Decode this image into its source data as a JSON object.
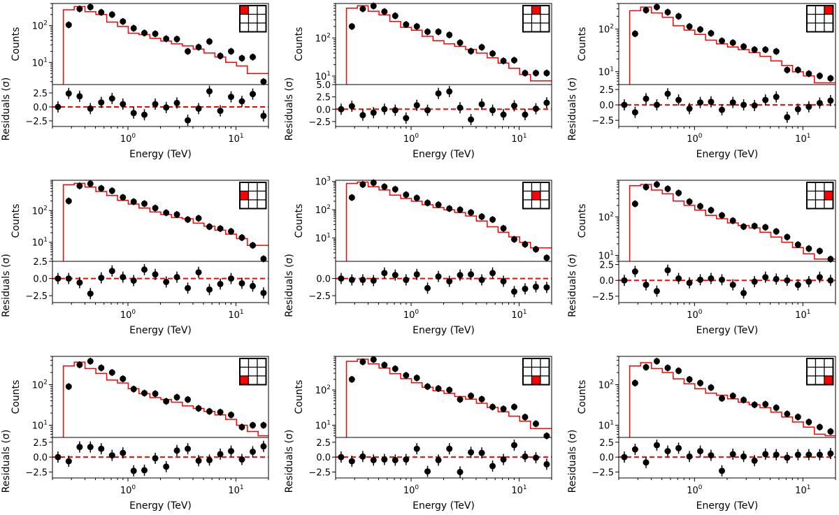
{
  "chart_data": {
    "type": "scatter",
    "layout": "3x3 grid of spectral fit panels, each with counts (log) above and residuals below",
    "x_energies_TeV": [
      0.225,
      0.283,
      0.357,
      0.449,
      0.566,
      0.713,
      0.898,
      1.13,
      1.42,
      1.79,
      2.26,
      2.84,
      3.58,
      4.51,
      5.68,
      7.16,
      9.01,
      11.35,
      14.3,
      18.0
    ],
    "xlabel": "Energy (TeV)",
    "xscale": "log",
    "xlim": [
      0.2,
      20
    ],
    "x_tick_labels": [
      "10^0",
      "10^1"
    ],
    "counts_ylabel": "Counts",
    "residuals_ylabel": "Residuals (σ)",
    "model_color": "#ff0000",
    "data_color": "#000000",
    "panels": [
      {
        "name": "panel-1-1",
        "inset_highlight": [
          0,
          0
        ],
        "counts_ylim": [
          2.5,
          400
        ],
        "counts_ticks": [
          "10^1",
          "10^2"
        ],
        "residual_ylim": [
          -3.5,
          4.0
        ],
        "residual_ticks": [
          "2.5",
          "0.0",
          "−2.5"
        ],
        "counts": [
          null,
          105,
          285,
          320,
          230,
          200,
          130,
          85,
          63,
          60,
          44,
          43,
          20,
          26,
          37,
          15,
          20,
          13,
          14,
          3.0
        ],
        "model": [
          90,
          270,
          330,
          240,
          200,
          125,
          95,
          62,
          57,
          45,
          38,
          32,
          28,
          23,
          18,
          14,
          10,
          8,
          5,
          5
        ],
        "residuals": [
          0.0,
          2.4,
          1.9,
          -0.3,
          0.8,
          1.5,
          0.5,
          -1.1,
          -1.4,
          0.5,
          -0.1,
          0.7,
          -2.4,
          -0.3,
          2.8,
          -0.7,
          1.8,
          1.0,
          2.3,
          -1.6
        ]
      },
      {
        "name": "panel-1-2",
        "inset_highlight": [
          0,
          1
        ],
        "counts_ylim": [
          6,
          800
        ],
        "counts_ticks": [
          "10^1",
          "10^2"
        ],
        "residual_ylim": [
          -3.5,
          5.0
        ],
        "residual_ticks": [
          "5.0",
          "2.5",
          "0.0",
          "−2.5"
        ],
        "counts": [
          null,
          200,
          580,
          690,
          490,
          380,
          225,
          200,
          145,
          145,
          120,
          75,
          45,
          57,
          39,
          25,
          26,
          12,
          12,
          12
        ],
        "model": [
          200,
          600,
          700,
          500,
          400,
          270,
          190,
          160,
          110,
          85,
          70,
          60,
          50,
          40,
          30,
          22,
          16,
          11,
          7.5,
          7.5
        ],
        "residuals": [
          0.0,
          0.6,
          -1.2,
          -0.7,
          0.0,
          -0.2,
          -1.8,
          0.8,
          -0.2,
          3.2,
          3.6,
          0.3,
          -2.1,
          1.0,
          -0.2,
          -1.1,
          0.7,
          -1.1,
          0.1,
          1.3
        ]
      },
      {
        "name": "panel-1-3",
        "inset_highlight": [
          0,
          2
        ],
        "counts_ylim": [
          5,
          400
        ],
        "counts_ticks": [
          "10^1",
          "10^2"
        ],
        "residual_ylim": [
          -3.5,
          3.3
        ],
        "residual_ticks": [
          "2.5",
          "0.0",
          "−2.5"
        ],
        "counts": [
          null,
          78,
          280,
          330,
          250,
          200,
          115,
          98,
          80,
          53,
          48,
          39,
          33,
          33,
          30,
          11,
          11,
          9,
          8,
          7
        ],
        "model": [
          90,
          270,
          330,
          240,
          190,
          120,
          95,
          75,
          55,
          45,
          38,
          33,
          28,
          23,
          18,
          14,
          10,
          8,
          5.5,
          5.5
        ],
        "residuals": [
          0.0,
          -1.2,
          1.0,
          0.0,
          1.8,
          0.8,
          -0.6,
          0.4,
          0.5,
          -0.8,
          0.4,
          0.0,
          -0.1,
          0.8,
          1.3,
          -2.0,
          -0.7,
          -0.3,
          0.3,
          0.7
        ]
      },
      {
        "name": "panel-2-1",
        "inset_highlight": [
          1,
          0
        ],
        "counts_ylim": [
          2.5,
          900
        ],
        "counts_ticks": [
          "10^1",
          "10^2"
        ],
        "residual_ylim": [
          -3.5,
          2.5
        ],
        "residual_ticks": [
          "2.5",
          "0.0",
          "−2.5"
        ],
        "counts": [
          null,
          200,
          600,
          700,
          500,
          420,
          260,
          190,
          165,
          120,
          85,
          75,
          52,
          57,
          31,
          27,
          22,
          14,
          8,
          3
        ],
        "model": [
          200,
          650,
          720,
          550,
          400,
          300,
          210,
          160,
          120,
          90,
          75,
          60,
          55,
          40,
          32,
          24,
          18,
          13,
          8,
          8
        ],
        "residuals": [
          0.0,
          0.0,
          -0.6,
          -2.2,
          0.1,
          1.1,
          0.2,
          -0.3,
          1.3,
          0.6,
          -0.5,
          0.2,
          -1.4,
          0.9,
          -1.6,
          -0.8,
          0.0,
          -0.7,
          -1.1,
          -2.1
        ]
      },
      {
        "name": "panel-2-2",
        "inset_highlight": [
          1,
          1
        ],
        "counts_ylim": [
          1.5,
          1100
        ],
        "counts_ticks": [
          "10^1",
          "10^2",
          "10^3"
        ],
        "residual_ylim": [
          -3.5,
          2.5
        ],
        "residual_ticks": [
          "0.0",
          "−2.5"
        ],
        "counts": [
          null,
          270,
          780,
          900,
          650,
          530,
          340,
          260,
          175,
          150,
          110,
          100,
          80,
          57,
          45,
          22,
          9,
          6,
          4,
          2
        ],
        "model": [
          280,
          850,
          950,
          650,
          500,
          330,
          250,
          200,
          150,
          120,
          100,
          80,
          60,
          40,
          25,
          16,
          11,
          7,
          4.5,
          4.5
        ],
        "residuals": [
          0.0,
          -0.2,
          -0.2,
          -0.3,
          0.8,
          0.5,
          -0.2,
          0.6,
          -1.4,
          0.3,
          -0.4,
          0.5,
          0.6,
          -0.2,
          0.8,
          -0.4,
          -1.9,
          -1.5,
          -1.2,
          -1.3
        ]
      },
      {
        "name": "panel-2-3",
        "inset_highlight": [
          1,
          2
        ],
        "counts_ylim": [
          7,
          900
        ],
        "counts_ticks": [
          "10^1",
          "10^2"
        ],
        "residual_ylim": [
          -3.5,
          3.0
        ],
        "residual_ticks": [
          "2.5",
          "0.0",
          "−2.5"
        ],
        "counts": [
          null,
          220,
          600,
          700,
          540,
          420,
          250,
          190,
          150,
          110,
          80,
          56,
          58,
          54,
          42,
          30,
          19,
          15,
          13,
          8
        ],
        "model": [
          200,
          650,
          700,
          500,
          400,
          260,
          200,
          150,
          110,
          90,
          70,
          60,
          52,
          40,
          30,
          22,
          16,
          11,
          8,
          8
        ],
        "residuals": [
          0.0,
          1.4,
          -0.7,
          -1.7,
          1.6,
          0.3,
          -0.4,
          0.1,
          0.3,
          0.1,
          -0.7,
          -2.0,
          -0.2,
          0.5,
          0.2,
          0.0,
          -0.7,
          -0.2,
          0.5,
          0.0
        ]
      },
      {
        "name": "panel-3-1",
        "inset_highlight": [
          2,
          0
        ],
        "counts_ylim": [
          5,
          500
        ],
        "counts_ticks": [
          "10^1",
          "10^2"
        ],
        "residual_ylim": [
          -3.5,
          3.3
        ],
        "residual_ticks": [
          "2.5",
          "0.0",
          "−2.5"
        ],
        "counts": [
          null,
          90,
          310,
          380,
          260,
          200,
          140,
          78,
          62,
          60,
          39,
          49,
          43,
          26,
          22,
          21,
          18,
          9,
          10,
          10
        ],
        "model": [
          95,
          290,
          360,
          250,
          190,
          130,
          110,
          80,
          60,
          48,
          43,
          37,
          30,
          26,
          22,
          18,
          14,
          10,
          7,
          5.5
        ],
        "residuals": [
          0.0,
          -0.7,
          1.7,
          1.7,
          1.4,
          0.3,
          0.7,
          -2.3,
          -2.2,
          -0.2,
          -1.6,
          1.1,
          1.4,
          -0.6,
          -0.5,
          0.5,
          1.0,
          -0.4,
          0.9,
          1.8
        ]
      },
      {
        "name": "panel-3-2",
        "inset_highlight": [
          2,
          1
        ],
        "counts_ylim": [
          4.5,
          900
        ],
        "counts_ticks": [
          "10^1",
          "10^2"
        ],
        "residual_ylim": [
          -3.5,
          3.3
        ],
        "residual_ticks": [
          "2.5",
          "0.0",
          "−2.5"
        ],
        "counts": [
          null,
          200,
          630,
          730,
          510,
          400,
          260,
          220,
          125,
          110,
          100,
          54,
          68,
          55,
          33,
          29,
          33,
          17,
          11,
          5
        ],
        "model": [
          210,
          650,
          750,
          550,
          420,
          290,
          210,
          160,
          120,
          95,
          80,
          65,
          55,
          42,
          32,
          24,
          18,
          13,
          8,
          8
        ],
        "residuals": [
          0.0,
          -0.7,
          0.1,
          -0.5,
          -0.4,
          -0.5,
          -0.4,
          1.4,
          -2.4,
          -0.5,
          1.4,
          -2.5,
          0.8,
          0.7,
          -1.5,
          -0.4,
          2.0,
          0.1,
          -0.1,
          -1.2
        ]
      },
      {
        "name": "panel-3-3",
        "inset_highlight": [
          2,
          2
        ],
        "counts_ylim": [
          5,
          500
        ],
        "counts_ticks": [
          "10^1",
          "10^2"
        ],
        "residual_ylim": [
          -3.5,
          3.3
        ],
        "residual_ticks": [
          "2.5",
          "0.0",
          "−2.5"
        ],
        "counts": [
          null,
          110,
          270,
          380,
          260,
          220,
          135,
          110,
          85,
          46,
          53,
          42,
          32,
          33,
          27,
          19,
          16,
          12,
          9,
          7
        ],
        "model": [
          100,
          290,
          350,
          250,
          200,
          140,
          105,
          80,
          62,
          55,
          45,
          37,
          32,
          27,
          21,
          16,
          12,
          9,
          6,
          5.5
        ],
        "residuals": [
          0.0,
          1.3,
          -0.9,
          2.0,
          1.0,
          1.5,
          0.1,
          1.0,
          0.3,
          -2.3,
          0.5,
          0.1,
          -0.6,
          0.5,
          0.4,
          -0.1,
          0.4,
          0.4,
          0.4,
          0.6
        ]
      }
    ]
  }
}
